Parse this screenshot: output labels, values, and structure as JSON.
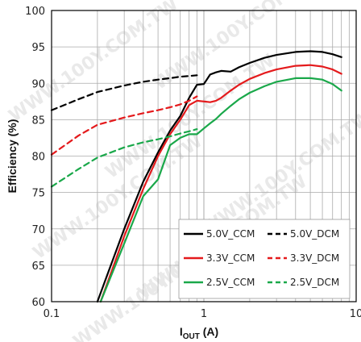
{
  "chart_data": {
    "type": "line",
    "xscale": "log",
    "xlim": [
      0.1,
      10
    ],
    "ylim": [
      60,
      100
    ],
    "xticks": [
      "0.1",
      "1",
      "10"
    ],
    "yticks": [
      "60",
      "65",
      "70",
      "75",
      "80",
      "85",
      "90",
      "95",
      "100"
    ],
    "xlabel_main": "I",
    "xlabel_sub": "OUT",
    "xlabel_unit": " (A)",
    "ylabel": "Efficiency (%)",
    "grid": true,
    "legend_position": "bottom-right",
    "series": [
      {
        "name": "5.0V_CCM",
        "color": "#000000",
        "dash": "solid",
        "x": [
          0.2,
          0.25,
          0.3,
          0.4,
          0.5,
          0.6,
          0.7,
          0.8,
          0.9,
          1.0,
          1.1,
          1.2,
          1.3,
          1.5,
          1.7,
          2.0,
          2.5,
          3.0,
          4.0,
          5.0,
          6.0,
          7.0,
          8.0
        ],
        "y": [
          60,
          65.5,
          70,
          76.5,
          80.5,
          83.5,
          85.5,
          88,
          89.8,
          89.9,
          91.2,
          91.5,
          91.7,
          91.6,
          92.2,
          92.8,
          93.5,
          93.9,
          94.3,
          94.4,
          94.3,
          94,
          93.6
        ]
      },
      {
        "name": "5.0V_DCM",
        "color": "#000000",
        "dash": "dashed",
        "x": [
          0.1,
          0.15,
          0.2,
          0.3,
          0.4,
          0.5,
          0.6,
          0.7,
          0.8,
          0.9
        ],
        "y": [
          86.3,
          87.8,
          88.8,
          89.7,
          90.2,
          90.5,
          90.7,
          90.9,
          91.0,
          91.1
        ]
      },
      {
        "name": "3.3V_CCM",
        "color": "#e41a1c",
        "dash": "solid",
        "x": [
          0.21,
          0.3,
          0.4,
          0.5,
          0.6,
          0.7,
          0.8,
          0.9,
          1.0,
          1.1,
          1.2,
          1.3,
          1.5,
          1.7,
          2.0,
          2.5,
          3.0,
          4.0,
          5.0,
          6.0,
          7.0,
          8.0
        ],
        "y": [
          60,
          69,
          75.5,
          80,
          83,
          85,
          87,
          87.6,
          87.5,
          87.4,
          87.6,
          88,
          89,
          89.8,
          90.6,
          91.4,
          91.9,
          92.4,
          92.5,
          92.3,
          91.9,
          91.3
        ]
      },
      {
        "name": "3.3V_DCM",
        "color": "#e41a1c",
        "dash": "dashed",
        "x": [
          0.1,
          0.15,
          0.2,
          0.3,
          0.4,
          0.5,
          0.6,
          0.7,
          0.8,
          0.9
        ],
        "y": [
          80.2,
          82.8,
          84.3,
          85.3,
          85.9,
          86.3,
          86.7,
          87.1,
          87.6,
          88.2
        ]
      },
      {
        "name": "2.5V_CCM",
        "color": "#1aa84a",
        "dash": "solid",
        "x": [
          0.21,
          0.3,
          0.4,
          0.5,
          0.6,
          0.7,
          0.8,
          0.9,
          1.0,
          1.1,
          1.2,
          1.3,
          1.5,
          1.7,
          2.0,
          2.5,
          3.0,
          4.0,
          5.0,
          6.0,
          7.0,
          8.0
        ],
        "y": [
          60,
          68,
          74.5,
          76.8,
          81.5,
          82.5,
          83.0,
          83.0,
          83.8,
          84.5,
          85.1,
          85.8,
          86.9,
          87.8,
          88.7,
          89.6,
          90.2,
          90.7,
          90.7,
          90.5,
          89.9,
          89.0
        ]
      },
      {
        "name": "2.5V_DCM",
        "color": "#1aa84a",
        "dash": "dashed",
        "x": [
          0.1,
          0.15,
          0.2,
          0.3,
          0.4,
          0.5,
          0.6,
          0.7,
          0.8,
          0.9
        ],
        "y": [
          75.8,
          78.2,
          79.8,
          81.2,
          81.9,
          82.3,
          82.7,
          83.1,
          83.4,
          83.7
        ]
      }
    ],
    "watermark": "WWW.100Y.COM.TW"
  }
}
